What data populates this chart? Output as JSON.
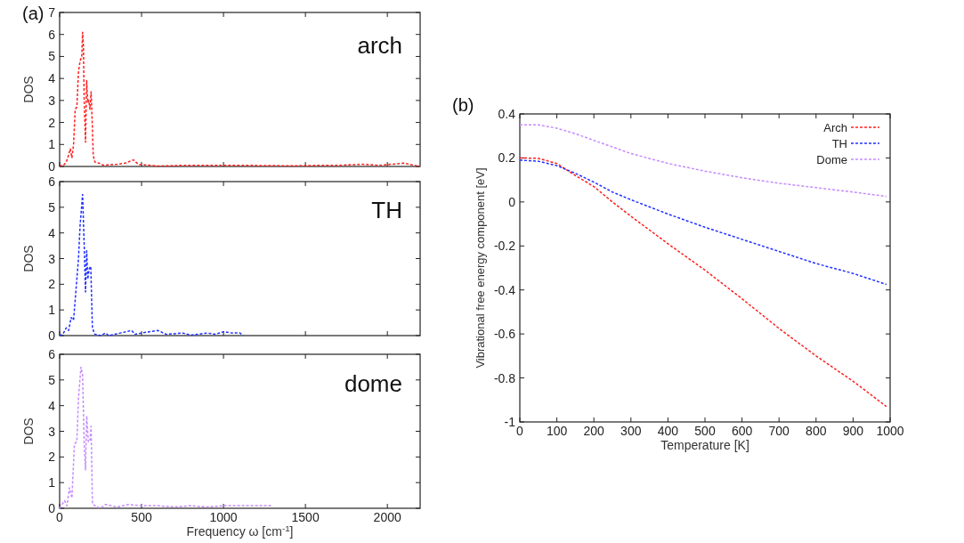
{
  "chart_data": [
    {
      "type": "line",
      "ylabel": "DOS",
      "annotations": [
        "(a)",
        "arch"
      ],
      "xlim": [
        0,
        2200
      ],
      "xticks": [
        0,
        500,
        1000,
        1500,
        2000
      ],
      "ylim": [
        0,
        7
      ],
      "yticks": [
        0,
        1,
        2,
        3,
        4,
        5,
        6,
        7
      ],
      "tick_labels": "y",
      "line_style": "dashed",
      "grid": false,
      "legend": false,
      "series": [
        {
          "color": "#ff2020",
          "x": [
            0,
            20,
            40,
            50,
            65,
            75,
            85,
            95,
            105,
            115,
            125,
            135,
            140,
            145,
            150,
            158,
            165,
            172,
            178,
            185,
            192,
            198,
            205,
            215,
            240,
            270,
            300,
            350,
            400,
            450,
            480,
            550,
            600,
            750,
            950,
            1150,
            1400,
            1600,
            1700,
            1850,
            1950,
            2100,
            2200
          ],
          "values": [
            0.05,
            0.02,
            0.2,
            0.4,
            0.8,
            0.4,
            1,
            2.6,
            2.7,
            4.3,
            4.8,
            5.0,
            6.1,
            5.5,
            3,
            1.1,
            3.9,
            2.9,
            3.0,
            2.6,
            3.4,
            2.2,
            0.5,
            0.2,
            0.15,
            0.05,
            0.08,
            0.1,
            0.15,
            0.3,
            0.1,
            0.05,
            0.02,
            0.05,
            0.05,
            0.05,
            0.03,
            0.05,
            0.05,
            0.1,
            0.05,
            0.15,
            0
          ]
        }
      ]
    },
    {
      "type": "line",
      "ylabel": "DOS",
      "annotations": [
        "TH"
      ],
      "xlim": [
        0,
        2200
      ],
      "xticks": [
        0,
        500,
        1000,
        1500,
        2000
      ],
      "ylim": [
        0,
        6
      ],
      "yticks": [
        0,
        1,
        2,
        3,
        4,
        5,
        6
      ],
      "tick_labels": "y",
      "line_style": "dashed",
      "grid": false,
      "legend": false,
      "series": [
        {
          "color": "#2030ff",
          "x": [
            0,
            20,
            40,
            55,
            70,
            85,
            100,
            115,
            125,
            140,
            150,
            158,
            165,
            172,
            180,
            190,
            200,
            215,
            250,
            280,
            300,
            370,
            440,
            460,
            500,
            600,
            650,
            750,
            800,
            900,
            950,
            1000,
            1050,
            1100,
            1120
          ],
          "values": [
            0,
            0.05,
            0.3,
            0.2,
            0.7,
            0.6,
            1.8,
            3,
            4.3,
            5.5,
            3.5,
            1.7,
            3.3,
            2.2,
            2.6,
            2.7,
            0.3,
            0.05,
            0,
            0.1,
            0,
            0.1,
            0.2,
            0.05,
            0.1,
            0.2,
            0.05,
            0.1,
            0.02,
            0.1,
            0.05,
            0.15,
            0.1,
            0.1,
            0
          ]
        }
      ]
    },
    {
      "type": "line",
      "ylabel": "DOS",
      "xlabel": "Frequency ω [cm$^{-1}$]",
      "annotations": [
        "dome"
      ],
      "xlim": [
        0,
        2200
      ],
      "xticks": [
        0,
        500,
        1000,
        1500,
        2000
      ],
      "ylim": [
        0,
        6
      ],
      "yticks": [
        0,
        1,
        2,
        3,
        4,
        5,
        6
      ],
      "line_style": "dashed",
      "grid": false,
      "legend": false,
      "series": [
        {
          "color": "#c58cff",
          "x": [
            0,
            30,
            45,
            60,
            75,
            90,
            105,
            115,
            130,
            140,
            150,
            158,
            165,
            175,
            185,
            192,
            200,
            215,
            250,
            280,
            350,
            420,
            500,
            600,
            700,
            800,
            900,
            1000,
            1100,
            1200,
            1300
          ],
          "values": [
            0,
            0.3,
            0.1,
            0.8,
            0.4,
            2.5,
            2.6,
            4.3,
            5.5,
            5.2,
            2.5,
            1.5,
            3.6,
            2.6,
            2.6,
            3.2,
            0.2,
            0.1,
            0,
            0.15,
            0.05,
            0.15,
            0.1,
            0.1,
            0.05,
            0.1,
            0.05,
            0.1,
            0.1,
            0.1,
            0.1
          ]
        }
      ]
    },
    {
      "type": "line",
      "xlabel": "Temperature [K]",
      "ylabel": "Vibrational free energy component [eV]",
      "annotations": [
        "(b)"
      ],
      "xlim": [
        0,
        1000
      ],
      "xticks": [
        0,
        100,
        200,
        300,
        400,
        500,
        600,
        700,
        800,
        900,
        1000
      ],
      "ylim": [
        -1,
        0.4
      ],
      "yticks": [
        -1,
        -0.8,
        -0.6,
        -0.4,
        -0.2,
        0,
        0.2,
        0.4
      ],
      "line_style": "dashed",
      "grid": false,
      "legend": "top right",
      "series": [
        {
          "name": "Arch",
          "color": "#ff2020",
          "x": [
            0,
            50,
            100,
            150,
            200,
            250,
            300,
            400,
            500,
            600,
            700,
            800,
            900,
            990
          ],
          "values": [
            0.2,
            0.198,
            0.175,
            0.12,
            0.07,
            0.0,
            -0.065,
            -0.19,
            -0.31,
            -0.44,
            -0.575,
            -0.7,
            -0.815,
            -0.93
          ]
        },
        {
          "name": "TH",
          "color": "#2030ff",
          "x": [
            0,
            50,
            100,
            150,
            200,
            250,
            300,
            400,
            500,
            600,
            700,
            800,
            900,
            990
          ],
          "values": [
            0.19,
            0.185,
            0.165,
            0.13,
            0.09,
            0.045,
            0.01,
            -0.055,
            -0.115,
            -0.17,
            -0.225,
            -0.28,
            -0.325,
            -0.375
          ]
        },
        {
          "name": "Dome",
          "color": "#c58cff",
          "x": [
            0,
            50,
            100,
            150,
            200,
            250,
            300,
            400,
            500,
            600,
            700,
            800,
            900,
            990
          ],
          "values": [
            0.35,
            0.35,
            0.335,
            0.31,
            0.28,
            0.25,
            0.22,
            0.175,
            0.14,
            0.11,
            0.085,
            0.065,
            0.045,
            0.025
          ]
        }
      ]
    }
  ]
}
